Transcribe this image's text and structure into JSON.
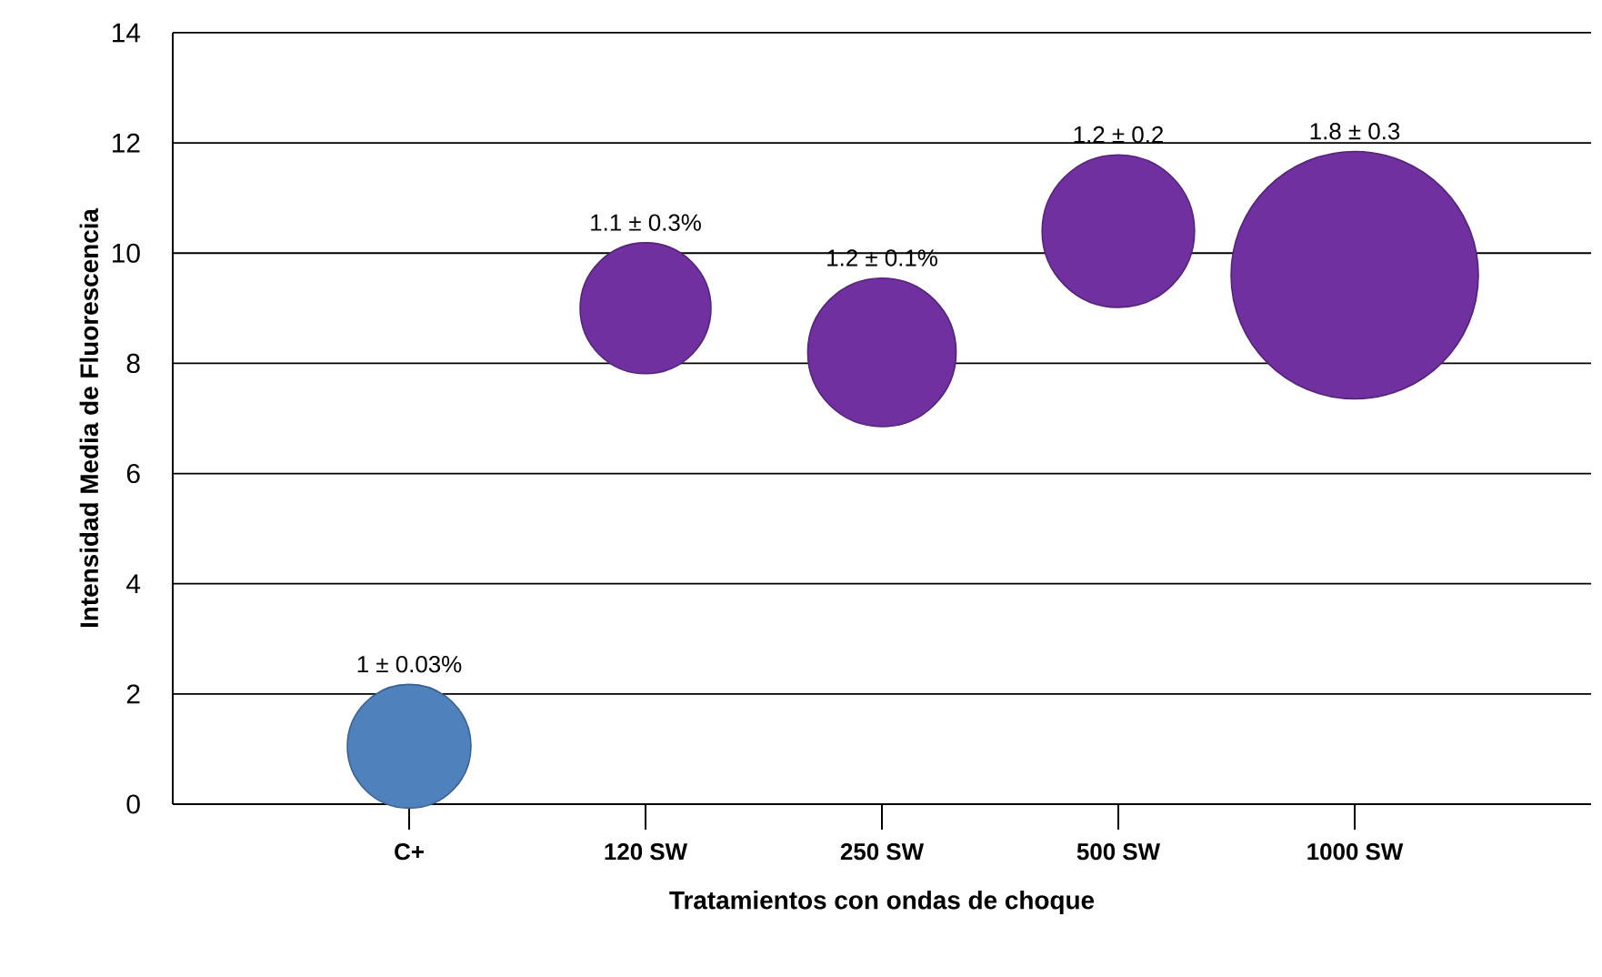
{
  "chart_data": {
    "type": "bubble",
    "xlabel": "Tratamientos con ondas de choque",
    "ylabel": "Intensidad  Media de Fluorescencia",
    "categories": [
      "C+",
      "120 SW",
      "250 SW",
      "500 SW",
      "1000 SW"
    ],
    "values": [
      1.05,
      9.0,
      8.2,
      10.4,
      9.6
    ],
    "sizes": [
      0.25,
      0.28,
      0.36,
      0.38,
      1
    ],
    "colors": [
      "#4f81bd",
      "#7030a0",
      "#7030a0",
      "#7030a0",
      "#7030a0"
    ],
    "value_labels": [
      "1 ± 0.03%",
      "1.1 ± 0.3%",
      "1.2 ± 0.1%",
      "1.2 ± 0.2",
      "1.8 ± 0.3"
    ],
    "ylim": [
      0,
      14
    ],
    "yticks": [
      0,
      2,
      4,
      6,
      8,
      10,
      12,
      14
    ],
    "grid": "y"
  }
}
